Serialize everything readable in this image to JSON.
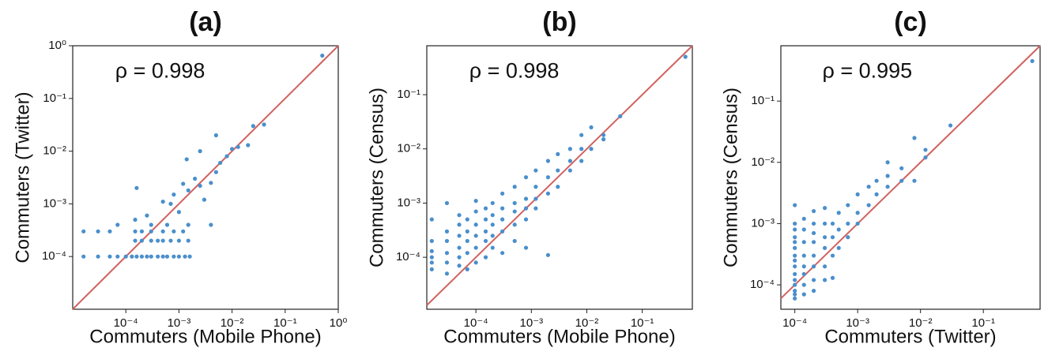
{
  "chart_data": [
    {
      "type": "scatter",
      "title": "(a)",
      "xlabel": "Commuters (Mobile Phone)",
      "ylabel": "Commuters (Twitter)",
      "annotation": "ρ = 0.998",
      "color": "#4a8fcc",
      "line_color": "#d0625f",
      "xlog": true,
      "ylog": true,
      "xlim": [
        1e-05,
        1
      ],
      "ylim": [
        1e-05,
        1
      ],
      "xticks": [
        {
          "value": 0.0001,
          "label": "10⁻⁴"
        },
        {
          "value": 0.001,
          "label": "10⁻³"
        },
        {
          "value": 0.01,
          "label": "10⁻²"
        },
        {
          "value": 0.1,
          "label": "10⁻¹"
        },
        {
          "value": 1,
          "label": "10⁰"
        }
      ],
      "yticks": [
        {
          "value": 0.0001,
          "label": "10⁻⁴"
        },
        {
          "value": 0.001,
          "label": "10⁻³"
        },
        {
          "value": 0.01,
          "label": "10⁻²"
        },
        {
          "value": 0.1,
          "label": "10⁻¹"
        },
        {
          "value": 1,
          "label": "10⁰"
        }
      ],
      "x": [
        1.6e-05,
        3e-05,
        5e-05,
        7e-05,
        0.0001,
        0.00013,
        0.00016,
        0.0002,
        0.00025,
        0.0003,
        0.0004,
        0.0005,
        0.0006,
        0.0008,
        0.001,
        0.0013,
        0.0016,
        0.00015,
        0.0002,
        0.0003,
        0.0004,
        0.0005,
        0.0007,
        0.001,
        0.0015,
        1.6e-05,
        3e-05,
        5e-05,
        0.00015,
        0.0002,
        0.0003,
        0.0005,
        0.0008,
        0.0012,
        7e-05,
        0.0003,
        0.0006,
        0.0015,
        0.004,
        0.00015,
        0.00025,
        0.00016,
        0.0005,
        0.0008,
        0.0012,
        0.0015,
        0.002,
        0.0025,
        0.003,
        0.004,
        0.005,
        0.006,
        0.0014,
        0.0025,
        0.005,
        0.008,
        0.01,
        0.013,
        0.02,
        0.025,
        0.04,
        0.5,
        0.0007,
        0.001
      ],
      "values": [
        0.0001,
        0.0001,
        0.0001,
        0.0001,
        0.0001,
        0.0001,
        0.0001,
        0.0001,
        0.0001,
        0.0001,
        0.0001,
        0.0001,
        0.0001,
        0.0001,
        0.0001,
        0.0001,
        0.0001,
        0.0002,
        0.0002,
        0.0002,
        0.0002,
        0.0002,
        0.0002,
        0.0002,
        0.0002,
        0.0003,
        0.0003,
        0.0003,
        0.0003,
        0.0003,
        0.0003,
        0.0003,
        0.0003,
        0.0003,
        0.0004,
        0.0004,
        0.0004,
        0.0004,
        0.0004,
        0.0005,
        0.0006,
        0.002,
        0.0011,
        0.0015,
        0.0024,
        0.0018,
        0.003,
        0.0022,
        0.0012,
        0.0025,
        0.004,
        0.006,
        0.007,
        0.01,
        0.02,
        0.008,
        0.011,
        0.012,
        0.013,
        0.03,
        0.032,
        0.65,
        0.001,
        0.0007
      ]
    },
    {
      "type": "scatter",
      "title": "(b)",
      "xlabel": "Commuters (Mobile Phone)",
      "ylabel": "Commuters (Census)",
      "annotation": "ρ = 0.998",
      "color": "#4a8fcc",
      "line_color": "#d0625f",
      "xlog": true,
      "ylog": true,
      "xlim": [
        1.3e-05,
        0.8
      ],
      "ylim": [
        1.1e-05,
        0.8
      ],
      "xticks": [
        {
          "value": 0.0001,
          "label": "10⁻⁴"
        },
        {
          "value": 0.001,
          "label": "10⁻³"
        },
        {
          "value": 0.01,
          "label": "10⁻²"
        },
        {
          "value": 0.1,
          "label": "10⁻¹"
        }
      ],
      "yticks": [
        {
          "value": 0.0001,
          "label": "10⁻⁴"
        },
        {
          "value": 0.001,
          "label": "10⁻³"
        },
        {
          "value": 0.01,
          "label": "10⁻²"
        },
        {
          "value": 0.1,
          "label": "10⁻¹"
        }
      ],
      "x": [
        1.6e-05,
        1.6e-05,
        1.6e-05,
        1.6e-05,
        1.6e-05,
        1.6e-05,
        3e-05,
        3e-05,
        3e-05,
        3e-05,
        3e-05,
        3e-05,
        5e-05,
        5e-05,
        5e-05,
        5e-05,
        5e-05,
        5e-05,
        7e-05,
        7e-05,
        7e-05,
        7e-05,
        7e-05,
        0.0001,
        0.0001,
        0.0001,
        0.0001,
        0.0001,
        0.0001,
        0.00015,
        0.00015,
        0.00015,
        0.00015,
        0.00015,
        0.0002,
        0.0002,
        0.0002,
        0.0002,
        0.0002,
        0.0003,
        0.0003,
        0.0003,
        0.0003,
        0.0003,
        0.0005,
        0.0005,
        0.0005,
        0.0005,
        0.0005,
        0.0008,
        0.0008,
        0.0008,
        0.0008,
        0.0008,
        0.0012,
        0.0012,
        0.0012,
        0.0012,
        0.002,
        0.002,
        0.002,
        0.002,
        0.003,
        0.003,
        0.003,
        0.005,
        0.005,
        0.005,
        0.008,
        0.008,
        0.008,
        0.012,
        0.012,
        0.02,
        0.02,
        0.04,
        0.6
      ],
      "values": [
        0.0001,
        0.00013,
        8e-05,
        0.0002,
        0.0005,
        6e-05,
        5e-05,
        8e-05,
        0.00012,
        0.0002,
        0.0003,
        0.001,
        7e-05,
        0.0001,
        0.00015,
        0.00025,
        0.0004,
        0.0006,
        6e-05,
        0.00012,
        0.0002,
        0.0003,
        0.0005,
        8e-05,
        0.00015,
        0.00025,
        0.0004,
        0.0007,
        0.0011,
        0.0001,
        0.0002,
        0.0003,
        0.0005,
        0.0008,
        0.00015,
        0.00025,
        0.0004,
        0.0006,
        0.001,
        0.00012,
        0.0003,
        0.0005,
        0.0008,
        0.0015,
        0.0002,
        0.0004,
        0.0007,
        0.001,
        0.002,
        0.00015,
        0.0005,
        0.0008,
        0.0012,
        0.003,
        0.0008,
        0.0012,
        0.002,
        0.004,
        0.00011,
        0.0015,
        0.003,
        0.006,
        0.002,
        0.004,
        0.008,
        0.004,
        0.006,
        0.01,
        0.006,
        0.01,
        0.018,
        0.01,
        0.025,
        0.015,
        0.018,
        0.04,
        0.5
      ]
    },
    {
      "type": "scatter",
      "title": "(c)",
      "xlabel": "Commuters (Twitter)",
      "ylabel": "Commuters (Census)",
      "annotation": "ρ = 0.995",
      "color": "#4a8fcc",
      "line_color": "#d0625f",
      "xlog": true,
      "ylog": true,
      "xlim": [
        6e-05,
        0.8
      ],
      "ylim": [
        4e-05,
        0.8
      ],
      "xticks": [
        {
          "value": 0.0001,
          "label": "10⁻⁴"
        },
        {
          "value": 0.001,
          "label": "10⁻³"
        },
        {
          "value": 0.01,
          "label": "10⁻²"
        },
        {
          "value": 0.1,
          "label": "10⁻¹"
        }
      ],
      "yticks": [
        {
          "value": 0.0001,
          "label": "10⁻⁴"
        },
        {
          "value": 0.001,
          "label": "10⁻³"
        },
        {
          "value": 0.01,
          "label": "10⁻²"
        },
        {
          "value": 0.1,
          "label": "10⁻¹"
        }
      ],
      "x": [
        0.0001,
        0.0001,
        0.0001,
        0.0001,
        0.0001,
        0.0001,
        0.0001,
        0.0001,
        0.0001,
        0.0001,
        0.0001,
        0.0001,
        0.0001,
        0.0001,
        0.0001,
        0.00014,
        0.00014,
        0.00014,
        0.00014,
        0.00014,
        0.00014,
        0.00014,
        0.00014,
        0.0002,
        0.0002,
        0.0002,
        0.0002,
        0.0002,
        0.0002,
        0.0002,
        0.0002,
        0.0003,
        0.0003,
        0.0003,
        0.0003,
        0.0003,
        0.0003,
        0.0004,
        0.0004,
        0.0004,
        0.0004,
        0.0005,
        0.0005,
        0.0005,
        0.0007,
        0.0007,
        0.0007,
        0.001,
        0.001,
        0.001,
        0.0015,
        0.0015,
        0.002,
        0.002,
        0.003,
        0.003,
        0.003,
        0.005,
        0.005,
        0.008,
        0.008,
        0.012,
        0.012,
        0.03,
        0.6
      ],
      "values": [
        6e-05,
        7e-05,
        8e-05,
        0.0001,
        0.00012,
        0.00015,
        0.0002,
        0.00025,
        0.0003,
        0.0004,
        0.0005,
        0.0006,
        0.0008,
        0.001,
        0.002,
        7e-05,
        0.0001,
        0.00015,
        0.0002,
        0.0003,
        0.0005,
        0.0008,
        0.0012,
        8e-05,
        0.00012,
        0.0002,
        0.0003,
        0.0005,
        0.0007,
        0.001,
        0.0016,
        0.00012,
        0.0002,
        0.0004,
        0.0006,
        0.001,
        0.0018,
        0.00013,
        0.0003,
        0.0006,
        0.001,
        0.0004,
        0.0008,
        0.0015,
        0.0006,
        0.001,
        0.002,
        0.001,
        0.0015,
        0.003,
        0.002,
        0.004,
        0.003,
        0.005,
        0.004,
        0.006,
        0.01,
        0.005,
        0.008,
        0.005,
        0.025,
        0.012,
        0.016,
        0.04,
        0.45
      ]
    }
  ]
}
